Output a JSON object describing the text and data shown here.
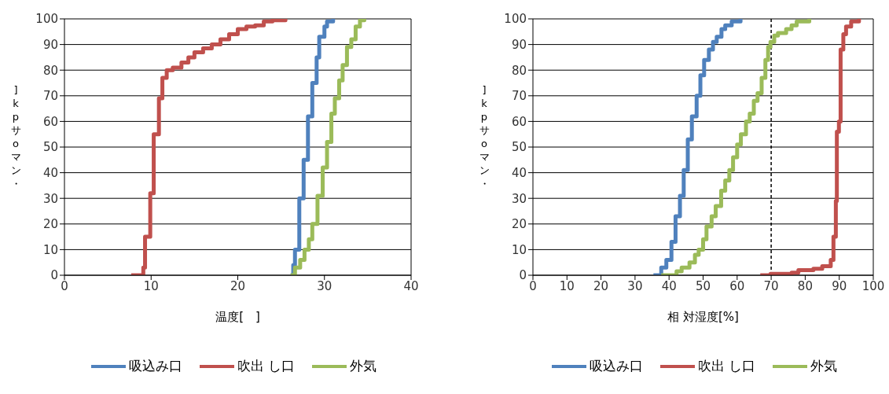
{
  "chart_data": [
    {
      "type": "step",
      "xlabel": "温度[　]",
      "ylabel": "]kpサoマン・",
      "xlim": [
        0,
        40
      ],
      "xticks": [
        0,
        10,
        20,
        30,
        40
      ],
      "ylim": [
        0,
        100
      ],
      "yticks": [
        0,
        10,
        20,
        30,
        40,
        50,
        60,
        70,
        80,
        90,
        100
      ],
      "grid": "y",
      "legend": "bottom",
      "marker": "none",
      "series": [
        {
          "name": "吸込み口",
          "color": "#4f81bd",
          "x": [
            26.1,
            26.4,
            26.6,
            27.1,
            27.6,
            28.1,
            28.6,
            29.1,
            29.4,
            30.0,
            30.3,
            31.0
          ],
          "values": [
            0,
            4,
            10,
            30,
            45,
            62,
            75,
            85,
            93,
            97,
            99,
            100
          ]
        },
        {
          "name": "吹出 し口",
          "color": "#c0504d",
          "x": [
            7.7,
            9.1,
            9.3,
            9.9,
            10.3,
            10.9,
            11.3,
            11.8,
            12.5,
            13.5,
            14.3,
            15.0,
            16.0,
            17.0,
            18.0,
            19.0,
            20.0,
            21.0,
            22.0,
            23.0,
            24.0,
            25.5
          ],
          "values": [
            0,
            3,
            15,
            32,
            55,
            69,
            77,
            80,
            81,
            83,
            85,
            87,
            88.5,
            90,
            92,
            94,
            96,
            97,
            97.5,
            99,
            99.5,
            100
          ]
        },
        {
          "name": "外気",
          "color": "#9bbb59",
          "x": [
            26.1,
            26.6,
            27.2,
            27.7,
            28.2,
            28.6,
            29.2,
            29.8,
            30.3,
            30.8,
            31.2,
            31.7,
            32.1,
            32.6,
            33.1,
            33.6,
            34.1,
            34.6
          ],
          "values": [
            0,
            3,
            6,
            10,
            14,
            20,
            31,
            42,
            52,
            63,
            69,
            76,
            82,
            89,
            92,
            97,
            99.5,
            100
          ]
        }
      ]
    },
    {
      "type": "step",
      "xlabel": "相 対湿度[%]",
      "ylabel": "]kpサoマン・",
      "xlim": [
        0,
        100
      ],
      "xticks": [
        0,
        10,
        20,
        30,
        40,
        50,
        60,
        70,
        80,
        90,
        100
      ],
      "ylim": [
        0,
        100
      ],
      "yticks": [
        0,
        10,
        20,
        30,
        40,
        50,
        60,
        70,
        80,
        90,
        100
      ],
      "grid": "y",
      "legend": "bottom",
      "marker": "none",
      "ref_lines": [
        {
          "axis": "x",
          "value": 70,
          "color": "#000000",
          "line_style": "dashed"
        }
      ],
      "series": [
        {
          "name": "吸込み口",
          "color": "#4f81bd",
          "x": [
            35.4,
            37.7,
            39.2,
            40.7,
            41.9,
            43.2,
            44.3,
            45.5,
            46.7,
            48.1,
            49.2,
            50.3,
            51.7,
            52.9,
            54.0,
            55.4,
            56.5,
            58.4,
            61.0
          ],
          "values": [
            0,
            3,
            6,
            13,
            23,
            31,
            41,
            53,
            62,
            70,
            78,
            84,
            88,
            91,
            93,
            96,
            97.5,
            99,
            100
          ]
        },
        {
          "name": "吹出 し口",
          "color": "#c0504d",
          "x": [
            66.8,
            69.8,
            76.0,
            78.0,
            82.4,
            85.0,
            87.5,
            88.3,
            89.0,
            89.3,
            89.9,
            90.4,
            91.2,
            92.0,
            93.5,
            95.8
          ],
          "values": [
            0,
            0.5,
            1,
            2,
            2.5,
            3.5,
            6,
            15,
            29,
            56,
            60,
            88,
            94,
            97,
            99,
            100
          ]
        },
        {
          "name": "外気",
          "color": "#9bbb59",
          "x": [
            37.7,
            42.2,
            43.7,
            46.0,
            47.6,
            48.7,
            50.0,
            51.0,
            52.5,
            53.7,
            55.3,
            56.5,
            57.7,
            58.8,
            60.0,
            61.1,
            62.6,
            63.7,
            64.9,
            66.0,
            67.2,
            68.3,
            69.1,
            69.8,
            70.9,
            72.0,
            74.4,
            76.0,
            77.5,
            81.2
          ],
          "values": [
            0,
            1.5,
            3,
            5,
            8,
            10,
            14,
            19,
            23,
            27,
            33,
            37,
            41,
            46,
            51,
            55,
            60,
            63,
            68,
            71,
            77,
            84,
            89,
            91,
            93.5,
            94.5,
            96,
            97.5,
            99,
            100
          ]
        }
      ]
    }
  ]
}
